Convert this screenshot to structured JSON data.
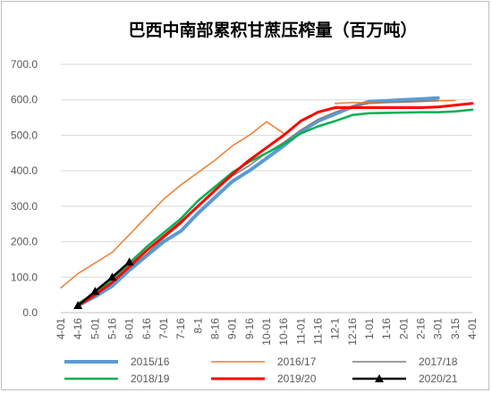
{
  "chart_data": {
    "type": "line",
    "title": "巴西中南部累积甘蔗压榨量（百万吨）",
    "xlabel": "",
    "ylabel": "",
    "ylim": [
      0,
      700
    ],
    "yticks": [
      "0.0",
      "100.0",
      "200.0",
      "300.0",
      "400.0",
      "500.0",
      "600.0",
      "700.0"
    ],
    "categories": [
      "4-01",
      "4-16",
      "5-01",
      "5-16",
      "6-01",
      "6-16",
      "7-01",
      "7-16",
      "8-1",
      "8-16",
      "9-01",
      "9-16",
      "10-01",
      "10-16",
      "11-01",
      "11-16",
      "12-1",
      "12-16",
      "1-01",
      "1-16",
      "2-01",
      "2-16",
      "3-01",
      "3-15",
      "4-01"
    ],
    "grid": true,
    "legend_position": "bottom",
    "series": [
      {
        "name": "2015/16",
        "color": "#5b9bd5",
        "width": 4,
        "marker": "none",
        "values": [
          null,
          20,
          45,
          75,
          120,
          160,
          200,
          230,
          280,
          325,
          370,
          400,
          435,
          470,
          510,
          540,
          560,
          580,
          595,
          597,
          600,
          602,
          605,
          null,
          null
        ]
      },
      {
        "name": "2016/17",
        "color": "#ed7d31",
        "width": 1.5,
        "marker": "none",
        "values": [
          70,
          110,
          140,
          170,
          220,
          270,
          320,
          360,
          395,
          430,
          470,
          500,
          538,
          505,
          null,
          null,
          590,
          592,
          592,
          592,
          593,
          595,
          597,
          598,
          null
        ]
      },
      {
        "name": "2017/18",
        "color": "#7f7f7f",
        "width": 1.5,
        "marker": "none",
        "values": [
          null,
          20,
          50,
          85,
          125,
          165,
          210,
          250,
          300,
          345,
          385,
          415,
          450,
          480,
          515,
          545,
          565,
          582,
          590,
          592,
          594,
          596,
          597,
          null,
          null
        ]
      },
      {
        "name": "2018/19",
        "color": "#00b050",
        "width": 2.5,
        "marker": "none",
        "values": [
          null,
          25,
          55,
          95,
          140,
          185,
          225,
          265,
          315,
          355,
          395,
          425,
          450,
          475,
          505,
          525,
          540,
          557,
          562,
          563,
          564,
          565,
          565,
          567,
          572
        ]
      },
      {
        "name": "2019/20",
        "color": "#ff0000",
        "width": 3,
        "marker": "none",
        "values": [
          null,
          20,
          50,
          85,
          130,
          175,
          215,
          255,
          300,
          345,
          390,
          430,
          465,
          500,
          540,
          565,
          578,
          578,
          578,
          578,
          578,
          578,
          580,
          585,
          590
        ]
      },
      {
        "name": "2020/21",
        "color": "#000000",
        "width": 2.5,
        "marker": "triangle",
        "values": [
          null,
          20,
          60,
          100,
          143,
          null,
          null,
          null,
          null,
          null,
          null,
          null,
          null,
          null,
          null,
          null,
          null,
          null,
          null,
          null,
          null,
          null,
          null,
          null,
          null
        ]
      }
    ]
  }
}
